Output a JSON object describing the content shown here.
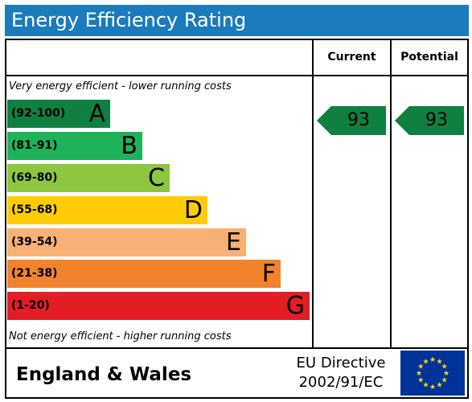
{
  "title": "Energy Efficiency Rating",
  "columns": {
    "current": "Current",
    "potential": "Potential"
  },
  "top_note": "Very energy efficient - lower running costs",
  "bottom_note": "Not energy efficient - higher running costs",
  "bands": [
    {
      "range": "(92-100)",
      "letter": "A",
      "color": "#0f8040"
    },
    {
      "range": "(81-91)",
      "letter": "B",
      "color": "#1eb359"
    },
    {
      "range": "(69-80)",
      "letter": "C",
      "color": "#8dc63f"
    },
    {
      "range": "(55-68)",
      "letter": "D",
      "color": "#ffcc03"
    },
    {
      "range": "(39-54)",
      "letter": "E",
      "color": "#f8b074"
    },
    {
      "range": "(21-38)",
      "letter": "F",
      "color": "#f2832d"
    },
    {
      "range": "(1-20)",
      "letter": "G",
      "color": "#e31d25"
    }
  ],
  "current_rating": {
    "value": "93",
    "band": "A",
    "color": "#0f8040"
  },
  "potential_rating": {
    "value": "93",
    "band": "A",
    "color": "#0f8040"
  },
  "footer": {
    "country": "England & Wales",
    "directive_line1": "EU Directive",
    "directive_line2": "2002/91/EC",
    "flag_icon": "eu-flag-icon"
  },
  "colors": {
    "title_bar": "#1a7bbd",
    "flag_blue": "#003399",
    "flag_star": "#ffdd00"
  }
}
